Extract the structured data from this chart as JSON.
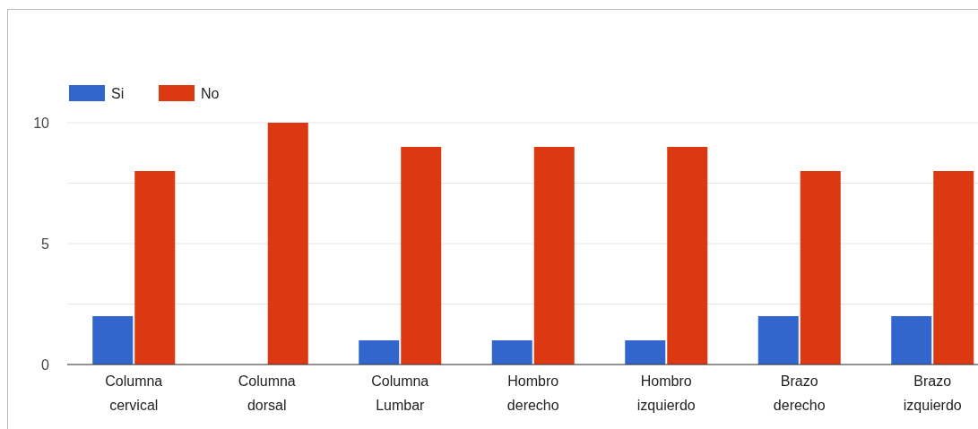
{
  "chart_data": {
    "type": "bar",
    "categories": [
      "Columna cervical",
      "Columna dorsal",
      "Columna Lumbar",
      "Hombro derecho",
      "Hombro izquierdo",
      "Brazo derecho",
      "Brazo izquierdo"
    ],
    "series": [
      {
        "name": "Si",
        "color": "#3366cc",
        "values": [
          2,
          0,
          1,
          1,
          1,
          2,
          2
        ]
      },
      {
        "name": "No",
        "color": "#dc3912",
        "values": [
          8,
          10,
          9,
          9,
          9,
          8,
          8
        ]
      }
    ],
    "ylim": [
      0,
      10
    ],
    "yticks": [
      0,
      {
        "value": 2.5,
        "label": null
      },
      5,
      {
        "value": 7.5,
        "label": null
      },
      10
    ],
    "grid": "y",
    "legend": "top left"
  }
}
